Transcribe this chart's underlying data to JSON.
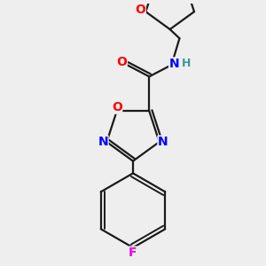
{
  "bg_color": "#eeeeee",
  "bond_color": "#1a1a1a",
  "bond_width": 1.6,
  "atom_colors": {
    "O": "#ff0000",
    "N": "#0000ff",
    "F": "#ee00ee",
    "C": "#1a1a1a",
    "H": "#3a9898"
  },
  "font_size_atom": 10
}
